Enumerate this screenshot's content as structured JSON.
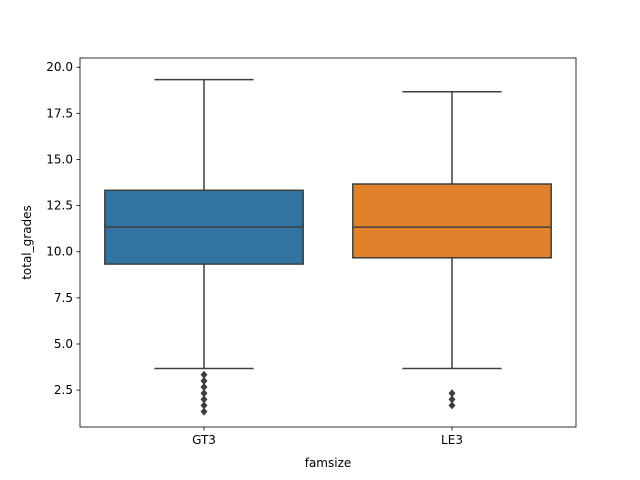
{
  "chart_data": {
    "type": "box",
    "title": "",
    "xlabel": "famsize",
    "ylabel": "total_grades",
    "ylim": [
      0.5,
      20.5
    ],
    "yticks": [
      2.5,
      5.0,
      7.5,
      10.0,
      12.5,
      15.0,
      17.5,
      20.0
    ],
    "ytick_labels": [
      "2.5",
      "5.0",
      "7.5",
      "10.0",
      "12.5",
      "15.0",
      "17.5",
      "20.0"
    ],
    "grid": false,
    "categories": [
      "GT3",
      "LE3"
    ],
    "boxes": [
      {
        "category": "GT3",
        "color": "#3274a1",
        "whisker_low": 3.67,
        "q1": 9.33,
        "median": 11.33,
        "q3": 13.33,
        "whisker_high": 19.33,
        "outliers": [
          3.33,
          3.0,
          2.67,
          2.33,
          2.0,
          1.67,
          1.33
        ]
      },
      {
        "category": "LE3",
        "color": "#e1812c",
        "whisker_low": 3.67,
        "q1": 9.67,
        "median": 11.33,
        "q3": 13.67,
        "whisker_high": 18.67,
        "outliers": [
          2.33,
          2.0,
          1.67
        ]
      }
    ]
  }
}
